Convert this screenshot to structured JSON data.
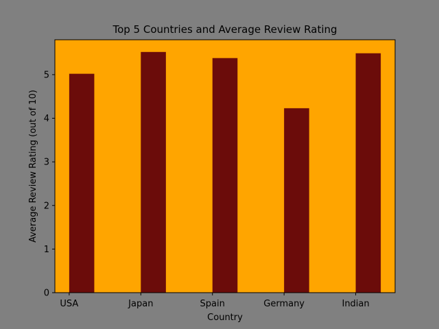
{
  "chart_data": {
    "type": "bar",
    "title": "Top 5 Countries and Average Review Rating",
    "xlabel": "Country",
    "ylabel": "Average Review Rating (out of 10)",
    "categories": [
      "USA",
      "Japan",
      "Spain",
      "Germany",
      "Indian"
    ],
    "values": [
      5.02,
      5.52,
      5.38,
      4.23,
      5.49
    ],
    "ylim": [
      0,
      5.8
    ],
    "yticks": [
      "0",
      "1",
      "2",
      "3",
      "4",
      "5"
    ],
    "grid": false,
    "legend": "none",
    "colors": {
      "figure_background": "#808080",
      "plot_background": "#FFA500",
      "bar": "#6B0C0A",
      "axis": "#000000"
    }
  }
}
